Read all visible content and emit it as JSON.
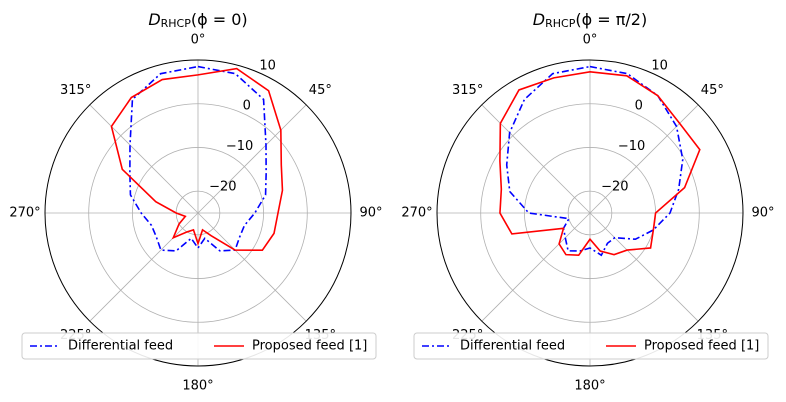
{
  "chart_data": [
    {
      "type": "polar",
      "title_main": "D",
      "title_sub": "RHCP",
      "title_args": "(ϕ = 0)",
      "theta_zero": "N",
      "theta_direction": "clockwise",
      "x": [
        0,
        15,
        30,
        45,
        60,
        75,
        90,
        105,
        120,
        135,
        150,
        165,
        180,
        195,
        210,
        225,
        240,
        255,
        270,
        285,
        300,
        315,
        330,
        345
      ],
      "xticks": [
        {
          "value": 0,
          "label": "0°"
        },
        {
          "value": 45,
          "label": "45°"
        },
        {
          "value": 90,
          "label": "90°"
        },
        {
          "value": 135,
          "label": "135°"
        },
        {
          "value": 180,
          "label": "180°"
        },
        {
          "value": 225,
          "label": "225°"
        },
        {
          "value": 270,
          "label": "270°"
        },
        {
          "value": 315,
          "label": "315°"
        }
      ],
      "ylim": [
        -25,
        10
      ],
      "yticks": [
        {
          "value": -20,
          "label": "−20"
        },
        {
          "value": -10,
          "label": "−10"
        },
        0,
        10
      ],
      "grid": true,
      "legend": "lower center",
      "series": [
        {
          "name": "Differential feed",
          "color": "#0000ff",
          "linestyle": "dashdot",
          "values": [
            8.5,
            8,
            5,
            -3,
            -7,
            -9,
            -12,
            -14,
            -14,
            -13,
            -15,
            -19,
            -17,
            -19,
            -15,
            -13,
            -14,
            -14,
            -12,
            -9,
            -7,
            -3,
            5,
            8
          ]
        },
        {
          "name": "Proposed feed [1]",
          "color": "#ff0000",
          "linestyle": "solid",
          "values": [
            6.6,
            9.2,
            7.3,
            1.8,
            -3,
            -5,
            -6.7,
            -7,
            -8,
            -13,
            -19,
            -21,
            -18,
            -21,
            -20,
            -17,
            -20,
            -22,
            -20,
            -15,
            -5,
            3,
            5.5,
            6.6
          ]
        }
      ]
    },
    {
      "type": "polar",
      "title_main": "D",
      "title_sub": "RHCP",
      "title_args": "(ϕ = π/2)",
      "theta_zero": "N",
      "theta_direction": "clockwise",
      "x": [
        0,
        15,
        30,
        45,
        60,
        75,
        90,
        105,
        120,
        135,
        150,
        165,
        180,
        195,
        210,
        225,
        240,
        255,
        270,
        285,
        300,
        315,
        330,
        345
      ],
      "xticks": [
        {
          "value": 0,
          "label": "0°"
        },
        {
          "value": 45,
          "label": "45°"
        },
        {
          "value": 90,
          "label": "90°"
        },
        {
          "value": 135,
          "label": "135°"
        },
        {
          "value": 180,
          "label": "180°"
        },
        {
          "value": 225,
          "label": "225°"
        },
        {
          "value": 270,
          "label": "270°"
        },
        {
          "value": 315,
          "label": "315°"
        }
      ],
      "ylim": [
        -25,
        10
      ],
      "yticks": [
        {
          "value": -20,
          "label": "−20"
        },
        {
          "value": -10,
          "label": "−10"
        },
        0,
        10
      ],
      "grid": true,
      "legend": "lower center",
      "series": [
        {
          "name": "Differential feed",
          "color": "#0000ff",
          "linestyle": "dashdot",
          "values": [
            8.5,
            8,
            6,
            3,
            -0.5,
            -4,
            -6.7,
            -10,
            -13,
            -17,
            -17,
            -15,
            -17,
            -16,
            -15,
            -17,
            -18,
            -20,
            -11,
            -6,
            -3,
            1,
            5,
            8
          ]
        },
        {
          "name": "Proposed feed [1]",
          "color": "#ff0000",
          "linestyle": "solid",
          "values": [
            7.3,
            7.5,
            6,
            4,
            4,
            -2.6,
            -10,
            -10,
            -9,
            -13,
            -14,
            -16,
            -19,
            -15,
            -14,
            -15,
            -18,
            -6.5,
            -4.4,
            -4,
            -1.2,
            4,
            7.5,
            7
          ]
        }
      ]
    }
  ]
}
